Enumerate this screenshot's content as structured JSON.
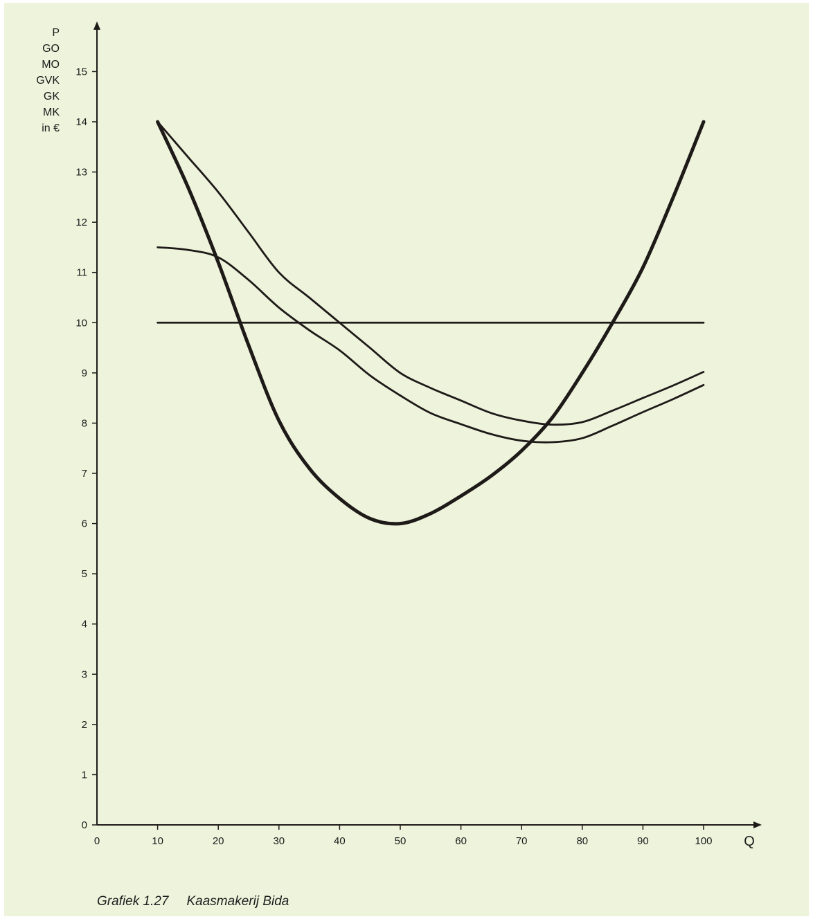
{
  "chart_data": {
    "type": "line",
    "title": "",
    "xlabel": "Q",
    "ylabel_lines": [
      "P",
      "GO",
      "MO",
      "GVK",
      "GK",
      "MK",
      "in €"
    ],
    "x_ticks": [
      0,
      10,
      20,
      30,
      40,
      50,
      60,
      70,
      80,
      90,
      100
    ],
    "y_ticks": [
      0,
      1,
      2,
      3,
      4,
      5,
      6,
      7,
      8,
      9,
      10,
      11,
      12,
      13,
      14,
      15
    ],
    "xlim": [
      0,
      100
    ],
    "ylim": [
      0,
      15
    ],
    "grid": false,
    "legend": false,
    "series": [
      {
        "x": [
          10,
          100
        ],
        "values": [
          10,
          10
        ]
      },
      {
        "x": [
          10,
          15,
          20,
          25,
          30,
          35,
          40,
          45,
          50,
          55,
          60,
          65,
          70,
          75,
          80,
          85,
          90,
          95,
          100
        ],
        "values": [
          14,
          13.3,
          12.6,
          11.8,
          11.0,
          10.5,
          10.0,
          9.5,
          9.0,
          8.7,
          8.45,
          8.2,
          8.05,
          7.97,
          8.02,
          8.25,
          8.5,
          8.75,
          9.02
        ]
      },
      {
        "x": [
          10,
          15,
          20,
          25,
          30,
          35,
          40,
          45,
          50,
          55,
          60,
          65,
          70,
          75,
          80,
          85,
          90,
          95,
          100
        ],
        "values": [
          11.5,
          11.45,
          11.3,
          10.85,
          10.3,
          9.85,
          9.45,
          8.95,
          8.55,
          8.2,
          7.98,
          7.78,
          7.65,
          7.62,
          7.7,
          7.95,
          8.22,
          8.48,
          8.76
        ]
      },
      {
        "x": [
          10,
          15,
          20,
          25,
          30,
          35,
          40,
          45,
          50,
          55,
          60,
          65,
          70,
          75,
          80,
          85,
          90,
          95,
          100
        ],
        "values": [
          14,
          12.7,
          11.2,
          9.55,
          8.05,
          7.1,
          6.5,
          6.1,
          6.0,
          6.2,
          6.55,
          6.95,
          7.45,
          8.1,
          9.0,
          10.0,
          11.1,
          12.5,
          14.0
        ],
        "emphasis": "bold"
      }
    ],
    "caption_label": "Grafiek 1.27",
    "caption_text": "Kaasmakerij Bida"
  },
  "colors": {
    "background": "#eef3dc",
    "line": "#1e1a18"
  }
}
